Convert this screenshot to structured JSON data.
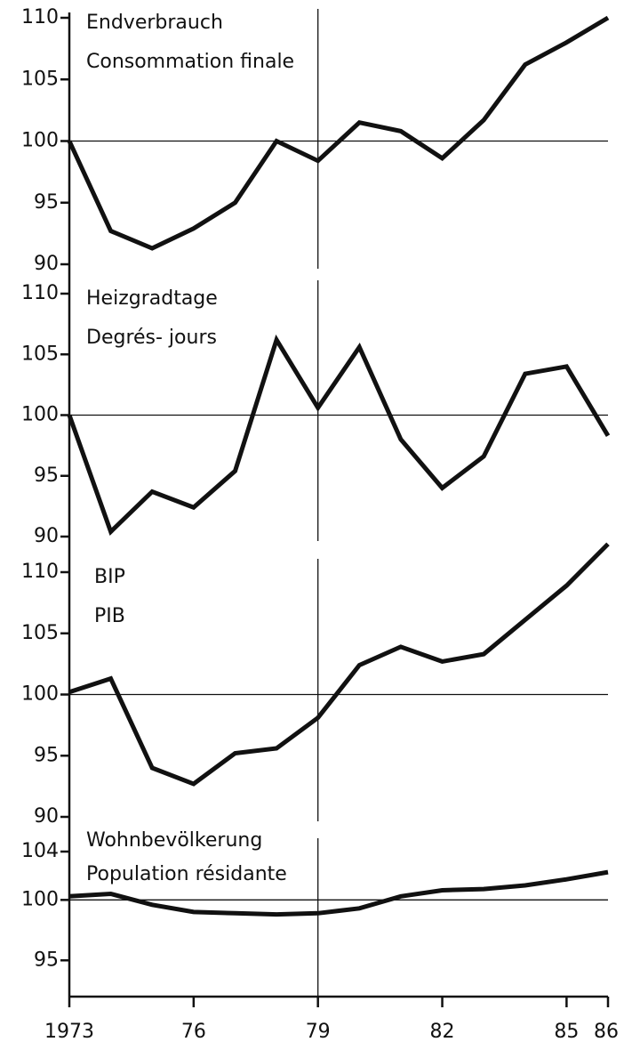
{
  "chart_data": [
    {
      "type": "line",
      "title": "Endverbrauch",
      "subtitle": "Consommation finale",
      "x": [
        1973,
        1974,
        1975,
        1976,
        1977,
        1978,
        1979,
        1980,
        1981,
        1982,
        1983,
        1984,
        1985,
        1986
      ],
      "values": [
        100,
        92.7,
        91.3,
        92.9,
        95,
        100,
        98.4,
        101.5,
        100.8,
        98.6,
        101.7,
        106.2,
        108,
        110
      ],
      "color": "#111111",
      "xlim": [
        1973,
        1986
      ],
      "ylim": [
        90,
        110
      ],
      "yticks": [
        90,
        95,
        100,
        105,
        110
      ],
      "hline": 100,
      "vline": 1979
    },
    {
      "type": "line",
      "title": "Heizgradtage",
      "subtitle": "Degrés- jours",
      "x": [
        1973,
        1974,
        1975,
        1976,
        1977,
        1978,
        1979,
        1980,
        1981,
        1982,
        1983,
        1984,
        1985,
        1986
      ],
      "values": [
        100,
        90.4,
        93.7,
        92.4,
        95.4,
        106.2,
        100.6,
        105.6,
        98,
        94,
        96.6,
        103.4,
        104,
        98.3
      ],
      "color": "#111111",
      "xlim": [
        1973,
        1986
      ],
      "ylim": [
        90,
        110
      ],
      "yticks": [
        90,
        95,
        100,
        105,
        110
      ],
      "hline": 100,
      "vline": 1979
    },
    {
      "type": "line",
      "title": "BIP",
      "subtitle": "PIB",
      "x": [
        1973,
        1974,
        1975,
        1976,
        1977,
        1978,
        1979,
        1980,
        1981,
        1982,
        1983,
        1984,
        1985,
        1986
      ],
      "values": [
        100.2,
        101.3,
        94,
        92.7,
        95.2,
        95.6,
        98.1,
        102.4,
        103.9,
        102.7,
        103.3,
        106.1,
        108.9,
        112.3
      ],
      "color": "#111111",
      "xlim": [
        1973,
        1986
      ],
      "ylim": [
        90,
        110
      ],
      "yticks": [
        90,
        95,
        100,
        105,
        110
      ],
      "hline": 100,
      "vline": 1979
    },
    {
      "type": "line",
      "title": "Wohnbevölkerung",
      "subtitle": "Population résidante",
      "x": [
        1973,
        1974,
        1975,
        1976,
        1977,
        1978,
        1979,
        1980,
        1981,
        1982,
        1983,
        1984,
        1985,
        1986
      ],
      "values": [
        100.3,
        100.5,
        99.6,
        99,
        98.9,
        98.8,
        98.9,
        99.3,
        100.3,
        100.8,
        100.9,
        101.2,
        101.7,
        102.3
      ],
      "color": "#111111",
      "xlim": [
        1973,
        1986
      ],
      "ylim": [
        92,
        104
      ],
      "yticks": [
        95,
        100,
        104
      ],
      "hline": 100,
      "vline": 1979,
      "xticks": [
        1973,
        {
          "value": 1976,
          "label": "76"
        },
        {
          "value": 1979,
          "label": "79"
        },
        {
          "value": 1982,
          "label": "82"
        },
        {
          "value": 1985,
          "label": "85"
        },
        {
          "value": 1986,
          "label": "86"
        }
      ]
    }
  ]
}
